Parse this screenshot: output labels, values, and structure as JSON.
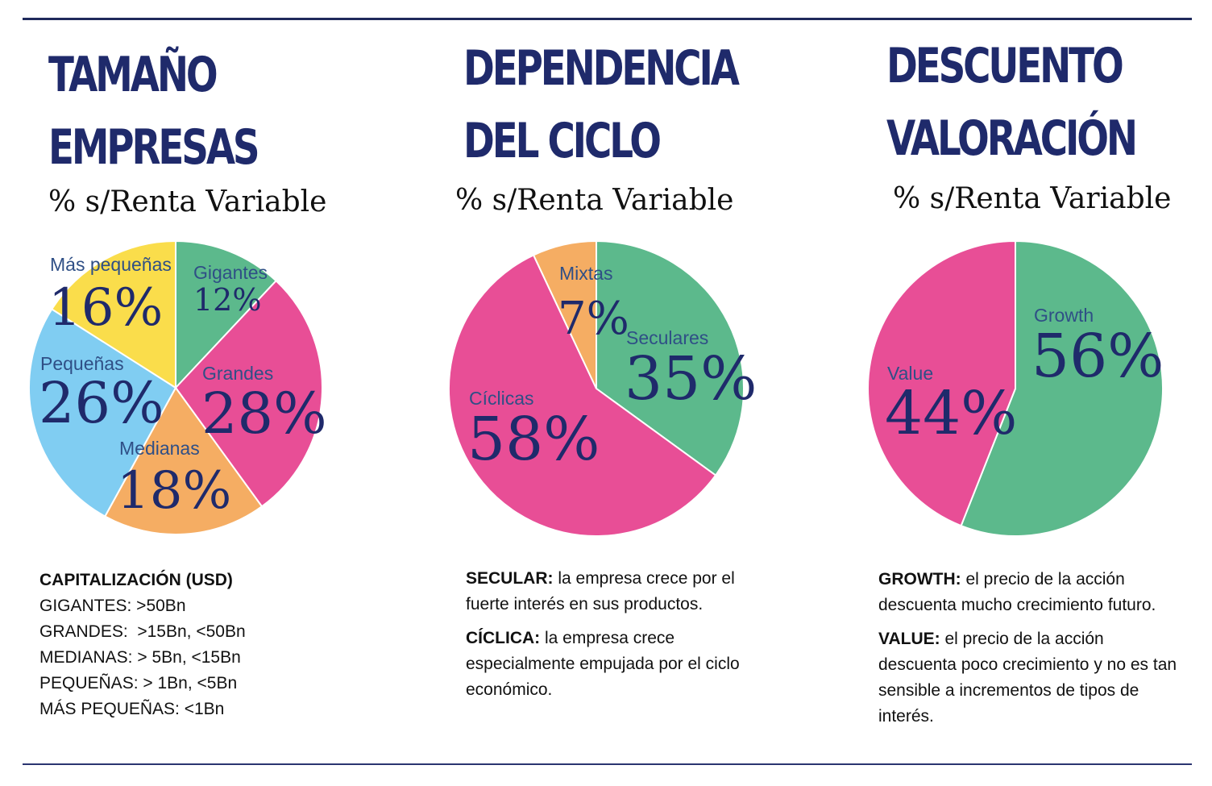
{
  "panels": [
    {
      "title_line1": "TAMAÑO",
      "title_line2": "EMPRESAS",
      "subtitle": "% s/Renta Variable"
    },
    {
      "title_line1": "DEPENDENCIA",
      "title_line2": "DEL CICLO",
      "subtitle": "% s/Renta Variable"
    },
    {
      "title_line1": "DESCUENTO",
      "title_line2": "VALORACIÓN",
      "subtitle": "% s/Renta Variable"
    }
  ],
  "notes": {
    "size": {
      "heading": "CAPITALIZACIÓN (USD)",
      "lines": [
        "GIGANTES: >50Bn",
        "GRANDES:  >15Bn, <50Bn",
        "MEDIANAS: > 5Bn, <15Bn",
        "PEQUEÑAS: > 1Bn, <5Bn",
        "MÁS PEQUEÑAS: <1Bn"
      ]
    },
    "cycle": {
      "secular_label": "SECULAR:",
      "secular_text": " la empresa crece por el fuerte interés en sus productos.",
      "ciclica_label": "CÍCLICA:",
      "ciclica_text": " la empresa crece especialmente empujada por el ciclo económico."
    },
    "valuation": {
      "growth_label": "GROWTH:",
      "growth_text": " el precio de la acción descuenta mucho crecimiento futuro.",
      "value_label": "VALUE:",
      "value_text": " el precio de la acción descuenta poco crecimiento y no es tan sensible a incrementos de tipos de interés."
    }
  },
  "chart_data": [
    {
      "type": "pie",
      "title": "TAMAÑO EMPRESAS",
      "subtitle": "% s/Renta Variable",
      "categories": [
        "Gigantes",
        "Grandes",
        "Medianas",
        "Pequeñas",
        "Más pequeñas"
      ],
      "values": [
        12,
        28,
        18,
        26,
        16
      ],
      "labels": [
        "12%",
        "28%",
        "18%",
        "26%",
        "16%"
      ],
      "colors": [
        "#5cb98c",
        "#e84e96",
        "#f5ad63",
        "#80cdf2",
        "#fadd4b"
      ]
    },
    {
      "type": "pie",
      "title": "DEPENDENCIA DEL CICLO",
      "subtitle": "% s/Renta Variable",
      "categories": [
        "Seculares",
        "Cíclicas",
        "Mixtas"
      ],
      "values": [
        35,
        58,
        7
      ],
      "labels": [
        "35%",
        "58%",
        "7%"
      ],
      "colors": [
        "#5cb98c",
        "#e84e96",
        "#f5ad63"
      ]
    },
    {
      "type": "pie",
      "title": "DESCUENTO VALORACIÓN",
      "subtitle": "% s/Renta Variable",
      "categories": [
        "Growth",
        "Value"
      ],
      "values": [
        56,
        44
      ],
      "labels": [
        "56%",
        "44%"
      ],
      "colors": [
        "#5cb98c",
        "#e84e96"
      ]
    }
  ]
}
